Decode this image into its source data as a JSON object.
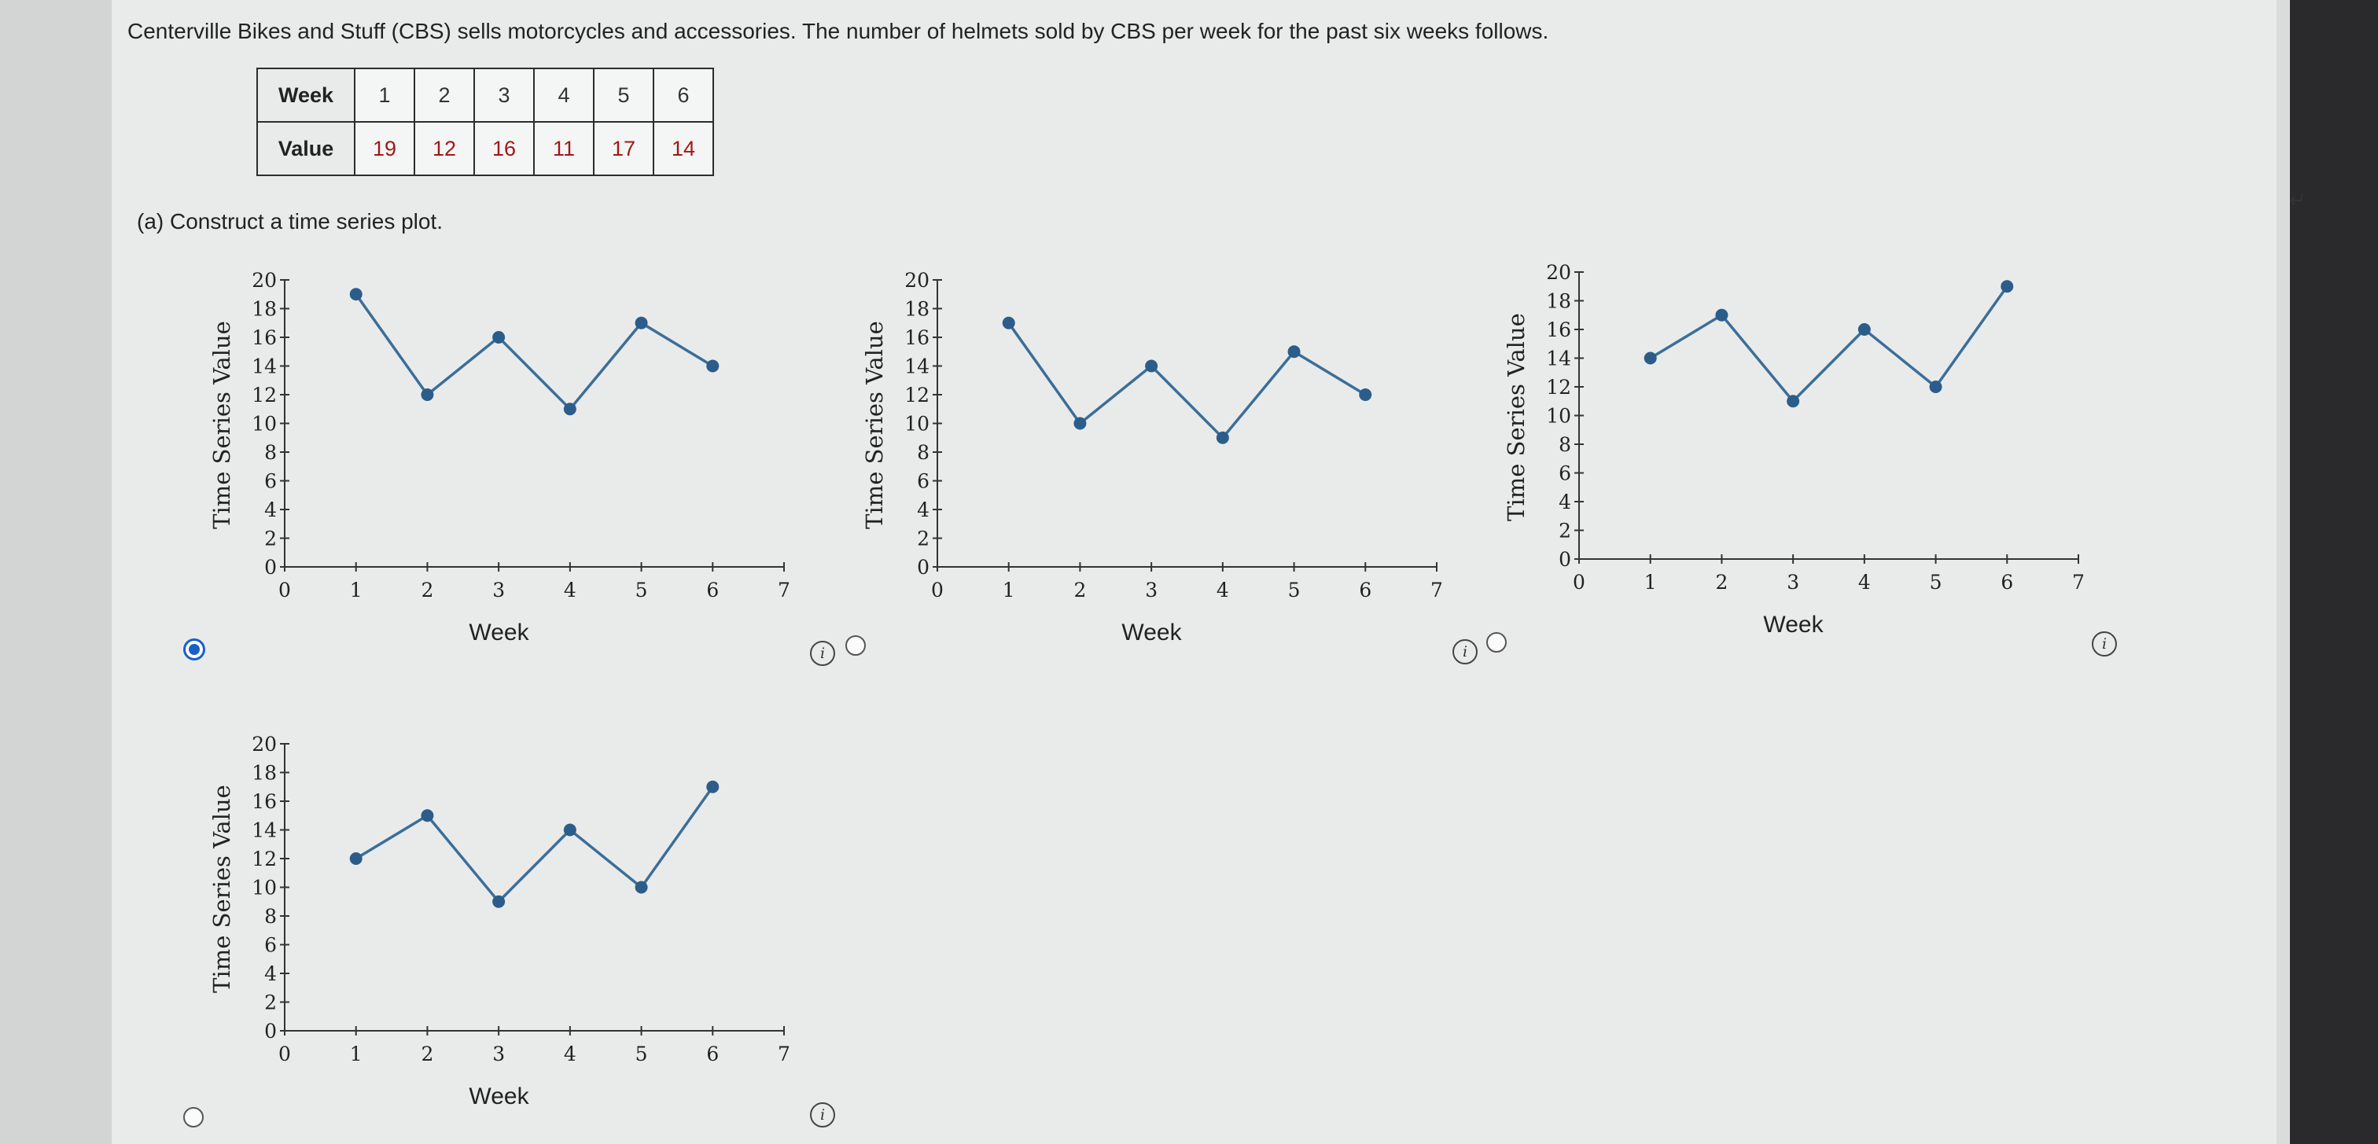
{
  "question": {
    "intro": "Centerville Bikes and Stuff (CBS) sells motorcycles and accessories. The number of helmets sold by CBS per week for the past six weeks follows.",
    "part_a": "(a)  Construct a time series plot."
  },
  "table": {
    "week_label": "Week",
    "value_label": "Value",
    "weeks": [
      "1",
      "2",
      "3",
      "4",
      "5",
      "6"
    ],
    "values": [
      "19",
      "12",
      "16",
      "11",
      "17",
      "14"
    ]
  },
  "icons": {
    "info": "info-icon",
    "radio": "radio-button",
    "arrow": "arrow-icon"
  },
  "colors": {
    "line": "#3b6e99",
    "point": "#2c5d8a",
    "radio_selected": "#1a5fc8"
  },
  "chart_data": [
    {
      "type": "line",
      "title": "",
      "xlabel": "Week",
      "ylabel": "Time Series Value",
      "x": [
        1,
        2,
        3,
        4,
        5,
        6
      ],
      "y": [
        19,
        12,
        16,
        11,
        17,
        14
      ],
      "xlim": [
        0,
        7
      ],
      "ylim": [
        0,
        20
      ],
      "xticks": [
        "0",
        "1",
        "2",
        "3",
        "4",
        "5",
        "6",
        "7"
      ],
      "yticks": [
        "0",
        "2",
        "4",
        "6",
        "8",
        "10",
        "12",
        "14",
        "16",
        "18",
        "20"
      ],
      "grid": false,
      "selected": true
    },
    {
      "type": "line",
      "title": "",
      "xlabel": "Week",
      "ylabel": "Time Series Value",
      "x": [
        1,
        2,
        3,
        4,
        5,
        6
      ],
      "y": [
        17,
        10,
        14,
        9,
        15,
        12
      ],
      "xlim": [
        0,
        7
      ],
      "ylim": [
        0,
        20
      ],
      "xticks": [
        "0",
        "1",
        "2",
        "3",
        "4",
        "5",
        "6",
        "7"
      ],
      "yticks": [
        "0",
        "2",
        "4",
        "6",
        "8",
        "10",
        "12",
        "14",
        "16",
        "18",
        "20"
      ],
      "grid": false,
      "selected": false
    },
    {
      "type": "line",
      "title": "",
      "xlabel": "Week",
      "ylabel": "Time Series Value",
      "x": [
        1,
        2,
        3,
        4,
        5,
        6
      ],
      "y": [
        14,
        17,
        11,
        16,
        12,
        19
      ],
      "xlim": [
        0,
        7
      ],
      "ylim": [
        0,
        20
      ],
      "xticks": [
        "0",
        "1",
        "2",
        "3",
        "4",
        "5",
        "6",
        "7"
      ],
      "yticks": [
        "0",
        "2",
        "4",
        "6",
        "8",
        "10",
        "12",
        "14",
        "16",
        "18",
        "20"
      ],
      "grid": false,
      "selected": false
    },
    {
      "type": "line",
      "title": "",
      "xlabel": "Week",
      "ylabel": "Time Series Value",
      "x": [
        1,
        2,
        3,
        4,
        5,
        6
      ],
      "y": [
        12,
        15,
        9,
        14,
        10,
        17
      ],
      "xlim": [
        0,
        7
      ],
      "ylim": [
        0,
        20
      ],
      "xticks": [
        "0",
        "1",
        "2",
        "3",
        "4",
        "5",
        "6",
        "7"
      ],
      "yticks": [
        "0",
        "2",
        "4",
        "6",
        "8",
        "10",
        "12",
        "14",
        "16",
        "18",
        "20"
      ],
      "grid": false,
      "selected": false
    }
  ]
}
